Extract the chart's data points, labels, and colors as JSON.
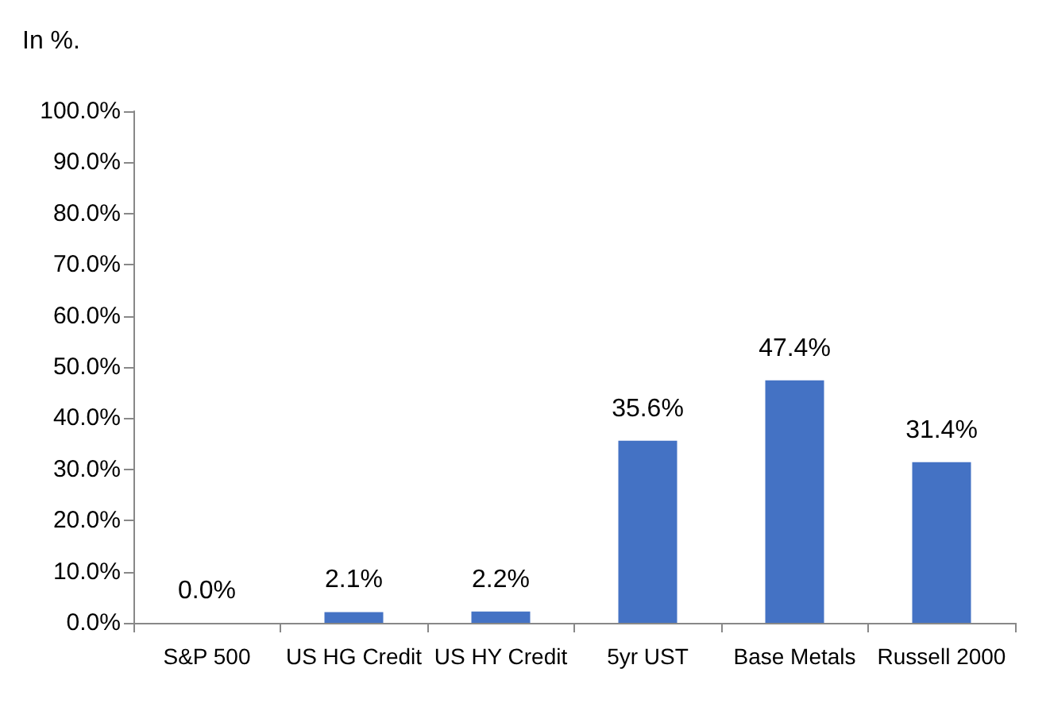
{
  "chart_data": {
    "type": "bar",
    "ylabel": "In %.",
    "categories": [
      "S&P 500",
      "US HG Credit",
      "US HY Credit",
      "5yr UST",
      "Base Metals",
      "Russell 2000"
    ],
    "values": [
      0.0,
      2.1,
      2.2,
      35.6,
      47.4,
      31.4
    ],
    "color": "#4472c4",
    "value_labels": [
      "0.0%",
      "2.1%",
      "2.2%",
      "35.6%",
      "47.4%",
      "31.4%"
    ],
    "ylim": [
      0,
      100
    ],
    "yticks": [
      {
        "value": 0,
        "label": "0.0%"
      },
      {
        "value": 10,
        "label": "10.0%"
      },
      {
        "value": 20,
        "label": "20.0%"
      },
      {
        "value": 30,
        "label": "30.0%"
      },
      {
        "value": 40,
        "label": "40.0%"
      },
      {
        "value": 50,
        "label": "50.0%"
      },
      {
        "value": 60,
        "label": "60.0%"
      },
      {
        "value": 70,
        "label": "70.0%"
      },
      {
        "value": 80,
        "label": "80.0%"
      },
      {
        "value": 90,
        "label": "90.0%"
      },
      {
        "value": 100,
        "label": "100.0%"
      }
    ],
    "grid": false
  }
}
